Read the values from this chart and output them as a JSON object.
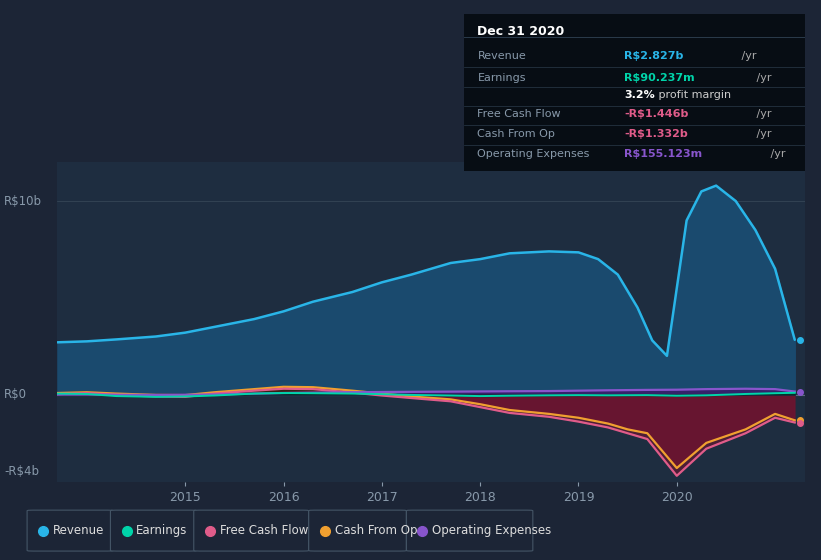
{
  "bg_color": "#1c2536",
  "plot_bg_color": "#1e2d40",
  "ylim": [
    -4500000000.0,
    12000000000.0
  ],
  "y_zero": 0,
  "y_top": 10000000000.0,
  "y_bot": -4000000000.0,
  "xlim_start": 2013.7,
  "xlim_end": 2021.3,
  "xticks": [
    2015,
    2016,
    2017,
    2018,
    2019,
    2020
  ],
  "legend_items": [
    {
      "label": "Revenue",
      "color": "#29b5e8"
    },
    {
      "label": "Earnings",
      "color": "#00d4aa"
    },
    {
      "label": "Free Cash Flow",
      "color": "#e05c8a"
    },
    {
      "label": "Cash From Op",
      "color": "#f0a030"
    },
    {
      "label": "Operating Expenses",
      "color": "#8855cc"
    }
  ],
  "revenue": {
    "color": "#29b5e8",
    "fill_color": "#1a4a6e",
    "x": [
      2013.7,
      2014.0,
      2014.3,
      2014.7,
      2015.0,
      2015.3,
      2015.7,
      2016.0,
      2016.3,
      2016.7,
      2017.0,
      2017.3,
      2017.7,
      2018.0,
      2018.3,
      2018.7,
      2019.0,
      2019.2,
      2019.4,
      2019.6,
      2019.75,
      2019.9,
      2020.1,
      2020.25,
      2020.4,
      2020.6,
      2020.8,
      2021.0,
      2021.2
    ],
    "y": [
      2700000000.0,
      2750000000.0,
      2850000000.0,
      3000000000.0,
      3200000000.0,
      3500000000.0,
      3900000000.0,
      4300000000.0,
      4800000000.0,
      5300000000.0,
      5800000000.0,
      6200000000.0,
      6800000000.0,
      7000000000.0,
      7300000000.0,
      7400000000.0,
      7350000000.0,
      7000000000.0,
      6200000000.0,
      4500000000.0,
      2800000000.0,
      2000000000.0,
      9000000000.0,
      10500000000.0,
      10800000000.0,
      10000000000.0,
      8500000000.0,
      6500000000.0,
      2830000000.0
    ]
  },
  "earnings": {
    "color": "#00d4aa",
    "fill_color": "#005544",
    "x": [
      2013.7,
      2014.0,
      2014.3,
      2014.7,
      2015.0,
      2015.3,
      2015.7,
      2016.0,
      2016.3,
      2016.7,
      2017.0,
      2017.3,
      2017.7,
      2018.0,
      2018.3,
      2018.7,
      2019.0,
      2019.3,
      2019.7,
      2020.0,
      2020.3,
      2020.7,
      2021.0,
      2021.2
    ],
    "y": [
      50000000.0,
      30000000.0,
      -80000000.0,
      -120000000.0,
      -100000000.0,
      -50000000.0,
      50000000.0,
      80000000.0,
      70000000.0,
      50000000.0,
      20000000.0,
      -20000000.0,
      -50000000.0,
      -80000000.0,
      -60000000.0,
      -40000000.0,
      -30000000.0,
      -40000000.0,
      -30000000.0,
      -60000000.0,
      -40000000.0,
      30000000.0,
      70000000.0,
      90000000.0
    ]
  },
  "cash_from_op": {
    "color": "#f0a030",
    "fill_color": "#5a3000",
    "x": [
      2013.7,
      2014.0,
      2014.3,
      2014.7,
      2015.0,
      2015.3,
      2015.7,
      2016.0,
      2016.3,
      2016.7,
      2017.0,
      2017.3,
      2017.7,
      2018.0,
      2018.3,
      2018.7,
      2019.0,
      2019.3,
      2019.5,
      2019.7,
      2020.0,
      2020.3,
      2020.7,
      2021.0,
      2021.2
    ],
    "y": [
      80000000.0,
      120000000.0,
      50000000.0,
      -20000000.0,
      -30000000.0,
      120000000.0,
      280000000.0,
      400000000.0,
      380000000.0,
      200000000.0,
      50000000.0,
      -100000000.0,
      -250000000.0,
      -500000000.0,
      -800000000.0,
      -1000000000.0,
      -1200000000.0,
      -1500000000.0,
      -1800000000.0,
      -2000000000.0,
      -3800000000.0,
      -2500000000.0,
      -1800000000.0,
      -1000000000.0,
      -1332000000.0
    ]
  },
  "free_cash_flow": {
    "color": "#e05c8a",
    "fill_color": "#6b1530",
    "x": [
      2013.7,
      2014.0,
      2014.3,
      2014.7,
      2015.0,
      2015.3,
      2015.7,
      2016.0,
      2016.3,
      2016.7,
      2017.0,
      2017.3,
      2017.7,
      2018.0,
      2018.3,
      2018.7,
      2019.0,
      2019.3,
      2019.5,
      2019.7,
      2020.0,
      2020.3,
      2020.7,
      2021.0,
      2021.2
    ],
    "y": [
      20000000.0,
      80000000.0,
      -20000000.0,
      -100000000.0,
      -120000000.0,
      50000000.0,
      200000000.0,
      300000000.0,
      280000000.0,
      100000000.0,
      -50000000.0,
      -180000000.0,
      -350000000.0,
      -650000000.0,
      -950000000.0,
      -1150000000.0,
      -1400000000.0,
      -1700000000.0,
      -2000000000.0,
      -2300000000.0,
      -4200000000.0,
      -2800000000.0,
      -2000000000.0,
      -1200000000.0,
      -1446000000.0
    ]
  },
  "operating_expenses": {
    "color": "#8855cc",
    "fill_color": "#3a1a6a",
    "x": [
      2013.7,
      2014.0,
      2014.3,
      2014.7,
      2015.0,
      2015.3,
      2015.7,
      2016.0,
      2016.3,
      2016.7,
      2017.0,
      2017.3,
      2017.7,
      2018.0,
      2018.3,
      2018.7,
      2019.0,
      2019.3,
      2019.7,
      2020.0,
      2020.3,
      2020.7,
      2021.0,
      2021.2
    ],
    "y": [
      0.0,
      0.0,
      -10000000.0,
      -20000000.0,
      -10000000.0,
      0.0,
      50000000.0,
      80000000.0,
      100000000.0,
      120000000.0,
      130000000.0,
      140000000.0,
      150000000.0,
      160000000.0,
      170000000.0,
      180000000.0,
      200000000.0,
      220000000.0,
      240000000.0,
      250000000.0,
      280000000.0,
      300000000.0,
      280000000.0,
      155000000.0
    ]
  },
  "info_box": {
    "title": "Dec 31 2020",
    "rows": [
      {
        "label": "Revenue",
        "value": "R$2.827b /yr",
        "value_color": "#29b5e8"
      },
      {
        "label": "Earnings",
        "value": "R$90.237m /yr",
        "value_color": "#00d4aa"
      },
      {
        "label": "",
        "value": "3.2%",
        "value_color": "#ffffff",
        "suffix": " profit margin"
      },
      {
        "label": "Free Cash Flow",
        "value": "-R$1.446b /yr",
        "value_color": "#e05c8a"
      },
      {
        "label": "Cash From Op",
        "value": "-R$1.332b /yr",
        "value_color": "#e05c8a"
      },
      {
        "label": "Operating Expenses",
        "value": "R$155.123m /yr",
        "value_color": "#8855cc"
      }
    ]
  }
}
